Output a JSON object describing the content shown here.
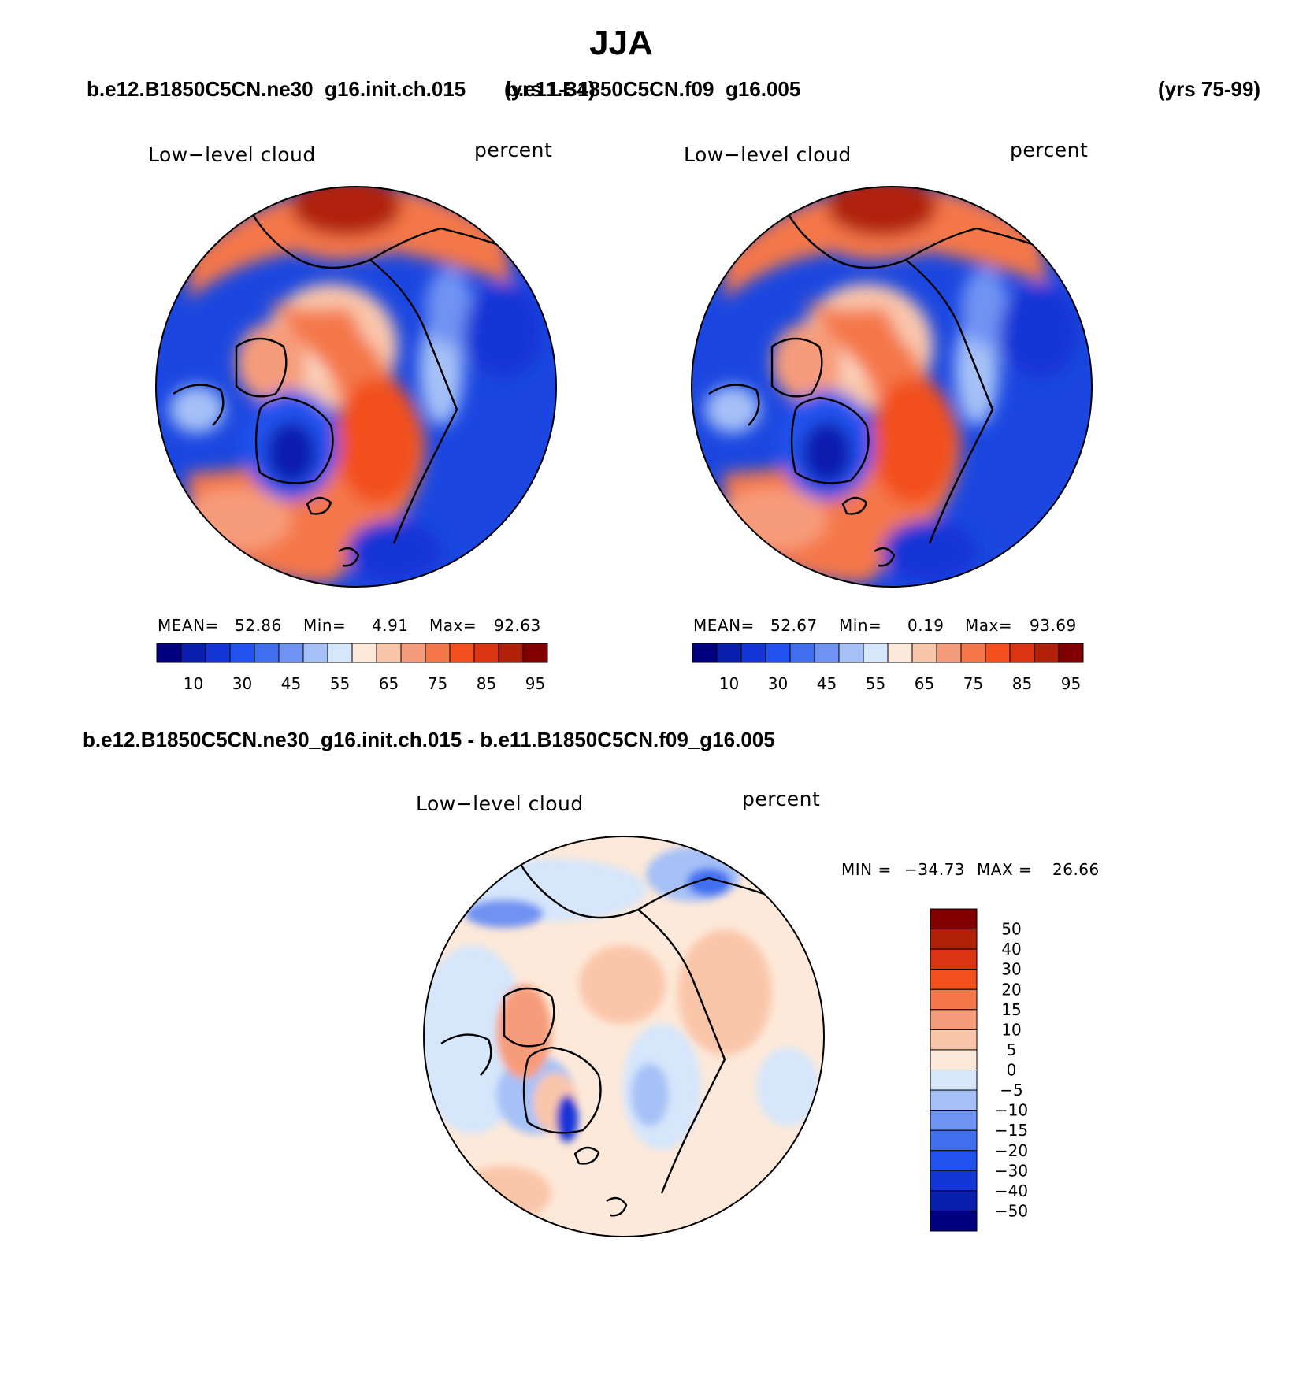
{
  "title": "JJA",
  "header": {
    "case_left": "b.e12.B1850C5CN.ne30_g16.init.ch.015",
    "years_left": "(yrs 1-34)",
    "case_right": "b.e11.B1850C5CN.f09_g16.005",
    "years_right": "(yrs 75-99)",
    "diff_title": "b.e12.B1850C5CN.ne30_g16.init.ch.015 - b.e11.B1850C5CN.f09_g16.005"
  },
  "panels": [
    {
      "id": "test",
      "variable": "Low−level cloud",
      "units": "percent",
      "stats": {
        "mean_label": "MEAN=",
        "mean": "52.86",
        "min_label": "Min=",
        "min": "4.91",
        "max_label": "Max=",
        "max": "92.63"
      }
    },
    {
      "id": "control",
      "variable": "Low−level cloud",
      "units": "percent",
      "stats": {
        "mean_label": "MEAN=",
        "mean": "52.67",
        "min_label": "Min=",
        "min": "0.19",
        "max_label": "Max=",
        "max": "93.69"
      }
    },
    {
      "id": "difference",
      "variable": "Low−level cloud",
      "units": "percent",
      "stats": {
        "min_label": "MIN =",
        "min": "−34.73",
        "max_label": "MAX =",
        "max": "26.66"
      }
    }
  ],
  "colorbars": {
    "mean_field": {
      "colors": [
        "#00007f",
        "#0a1fae",
        "#1336d6",
        "#2152ee",
        "#3f6fef",
        "#6f93f3",
        "#a6c1f7",
        "#d6e6fb",
        "#fde9d9",
        "#fac6aa",
        "#f79c7a",
        "#f4774a",
        "#f2501c",
        "#d93510",
        "#b02008",
        "#800000"
      ],
      "tick_labels": [
        "10",
        "30",
        "45",
        "55",
        "65",
        "75",
        "85",
        "95"
      ]
    },
    "difference": {
      "colors": [
        "#800000",
        "#b02008",
        "#d93510",
        "#f2501c",
        "#f4774a",
        "#f79c7a",
        "#fac6aa",
        "#fde9d9",
        "#d6e6fb",
        "#a6c1f7",
        "#6f93f3",
        "#3f6fef",
        "#2152ee",
        "#1336d6",
        "#0a1fae",
        "#00007f"
      ],
      "tick_labels": [
        "50",
        "40",
        "30",
        "20",
        "15",
        "10",
        "5",
        "0",
        "−5",
        "−10",
        "−15",
        "−20",
        "−30",
        "−40",
        "−50"
      ]
    }
  }
}
